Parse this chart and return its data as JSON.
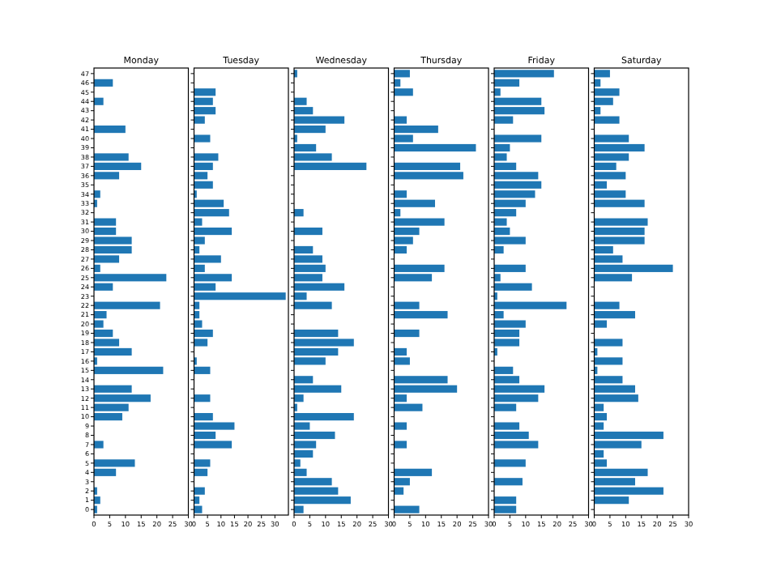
{
  "chart_data": [
    {
      "type": "bar",
      "orientation": "horizontal",
      "title": "Monday",
      "color": "#1f77b4",
      "xlim": [
        0,
        30
      ],
      "xticks": [
        0,
        5,
        10,
        15,
        20,
        25,
        30
      ],
      "categories": [
        "47",
        "46",
        "45",
        "44",
        "43",
        "42",
        "41",
        "40",
        "39",
        "38",
        "37",
        "36",
        "35",
        "34",
        "33",
        "32",
        "31",
        "30",
        "29",
        "28",
        "27",
        "26",
        "25",
        "24",
        "23",
        "22",
        "21",
        "20",
        "19",
        "18",
        "17",
        "16",
        "15",
        "14",
        "13",
        "12",
        "11",
        "10",
        "9",
        "8",
        "7",
        "6",
        "5",
        "4",
        "3",
        "2",
        "1",
        "0"
      ],
      "values": [
        0,
        6,
        0,
        3,
        0,
        0,
        10,
        0,
        0,
        11,
        15,
        8,
        0,
        2,
        1,
        0,
        7,
        7,
        12,
        12,
        8,
        2,
        23,
        6,
        0,
        21,
        4,
        3,
        6,
        8,
        12,
        1,
        22,
        0,
        12,
        18,
        11,
        9,
        0,
        0,
        3,
        0,
        13,
        7,
        0,
        1,
        2,
        1
      ]
    },
    {
      "type": "bar",
      "orientation": "horizontal",
      "title": "Tuesday",
      "color": "#1f77b4",
      "xlim": [
        0,
        35
      ],
      "xticks": [
        0,
        5,
        10,
        15,
        20,
        25,
        30
      ],
      "tick_labels": "x",
      "categories": [
        "47",
        "46",
        "45",
        "44",
        "43",
        "42",
        "41",
        "40",
        "39",
        "38",
        "37",
        "36",
        "35",
        "34",
        "33",
        "32",
        "31",
        "30",
        "29",
        "28",
        "27",
        "26",
        "25",
        "24",
        "23",
        "22",
        "21",
        "20",
        "19",
        "18",
        "17",
        "16",
        "15",
        "14",
        "13",
        "12",
        "11",
        "10",
        "9",
        "8",
        "7",
        "6",
        "5",
        "4",
        "3",
        "2",
        "1",
        "0"
      ],
      "values": [
        0,
        0,
        8,
        7,
        8,
        4,
        0,
        6,
        0,
        9,
        7,
        5,
        7,
        1,
        11,
        13,
        3,
        14,
        4,
        2,
        10,
        4,
        14,
        8,
        34,
        2,
        2,
        3,
        7,
        5,
        0,
        1,
        6,
        0,
        0,
        6,
        0,
        7,
        15,
        8,
        14,
        0,
        6,
        5,
        0,
        4,
        2,
        3
      ]
    },
    {
      "type": "bar",
      "orientation": "horizontal",
      "title": "Wednesday",
      "color": "#1f77b4",
      "xlim": [
        0,
        30
      ],
      "xticks": [
        0,
        5,
        10,
        15,
        20,
        25,
        30
      ],
      "tick_labels": "x",
      "categories": [
        "47",
        "46",
        "45",
        "44",
        "43",
        "42",
        "41",
        "40",
        "39",
        "38",
        "37",
        "36",
        "35",
        "34",
        "33",
        "32",
        "31",
        "30",
        "29",
        "28",
        "27",
        "26",
        "25",
        "24",
        "23",
        "22",
        "21",
        "20",
        "19",
        "18",
        "17",
        "16",
        "15",
        "14",
        "13",
        "12",
        "11",
        "10",
        "9",
        "8",
        "7",
        "6",
        "5",
        "4",
        "3",
        "2",
        "1",
        "0"
      ],
      "values": [
        1,
        0,
        0,
        4,
        6,
        16,
        10,
        1,
        7,
        12,
        23,
        0,
        0,
        0,
        0,
        3,
        0,
        9,
        0,
        6,
        9,
        10,
        9,
        16,
        4,
        12,
        0,
        0,
        14,
        19,
        14,
        10,
        0,
        6,
        15,
        3,
        1,
        19,
        5,
        13,
        7,
        6,
        2,
        4,
        12,
        14,
        18,
        3
      ]
    },
    {
      "type": "bar",
      "orientation": "horizontal",
      "title": "Thursday",
      "color": "#1f77b4",
      "xlim": [
        0,
        30
      ],
      "xticks": [
        0,
        5,
        10,
        15,
        20,
        25,
        30
      ],
      "tick_labels": "x",
      "categories": [
        "47",
        "46",
        "45",
        "44",
        "43",
        "42",
        "41",
        "40",
        "39",
        "38",
        "37",
        "36",
        "35",
        "34",
        "33",
        "32",
        "31",
        "30",
        "29",
        "28",
        "27",
        "26",
        "25",
        "24",
        "23",
        "22",
        "21",
        "20",
        "19",
        "18",
        "17",
        "16",
        "15",
        "14",
        "13",
        "12",
        "11",
        "10",
        "9",
        "8",
        "7",
        "6",
        "5",
        "4",
        "3",
        "2",
        "1",
        "0"
      ],
      "values": [
        5,
        2,
        6,
        0,
        0,
        4,
        14,
        6,
        26,
        0,
        21,
        22,
        0,
        4,
        13,
        2,
        16,
        8,
        6,
        4,
        0,
        16,
        12,
        0,
        0,
        8,
        17,
        0,
        8,
        0,
        4,
        5,
        0,
        17,
        20,
        4,
        9,
        0,
        4,
        0,
        4,
        0,
        0,
        12,
        5,
        3,
        0,
        8
      ]
    },
    {
      "type": "bar",
      "orientation": "horizontal",
      "title": "Friday",
      "color": "#1f77b4",
      "xlim": [
        0,
        30
      ],
      "xticks": [
        0,
        5,
        10,
        15,
        20,
        25,
        30
      ],
      "tick_labels": "x",
      "categories": [
        "47",
        "46",
        "45",
        "44",
        "43",
        "42",
        "41",
        "40",
        "39",
        "38",
        "37",
        "36",
        "35",
        "34",
        "33",
        "32",
        "31",
        "30",
        "29",
        "28",
        "27",
        "26",
        "25",
        "24",
        "23",
        "22",
        "21",
        "20",
        "19",
        "18",
        "17",
        "16",
        "15",
        "14",
        "13",
        "12",
        "11",
        "10",
        "9",
        "8",
        "7",
        "6",
        "5",
        "4",
        "3",
        "2",
        "1",
        "0"
      ],
      "values": [
        19,
        8,
        2,
        15,
        16,
        6,
        0,
        15,
        5,
        4,
        7,
        14,
        15,
        13,
        10,
        7,
        4,
        5,
        10,
        3,
        0,
        10,
        2,
        12,
        1,
        23,
        3,
        10,
        8,
        8,
        1,
        0,
        6,
        8,
        16,
        14,
        7,
        0,
        8,
        11,
        14,
        0,
        10,
        0,
        9,
        0,
        7,
        7
      ]
    },
    {
      "type": "bar",
      "orientation": "horizontal",
      "title": "Saturday",
      "color": "#1f77b4",
      "xlim": [
        0,
        30
      ],
      "xticks": [
        0,
        5,
        10,
        15,
        20,
        25,
        30
      ],
      "tick_labels": "x",
      "categories": [
        "47",
        "46",
        "45",
        "44",
        "43",
        "42",
        "41",
        "40",
        "39",
        "38",
        "37",
        "36",
        "35",
        "34",
        "33",
        "32",
        "31",
        "30",
        "29",
        "28",
        "27",
        "26",
        "25",
        "24",
        "23",
        "22",
        "21",
        "20",
        "19",
        "18",
        "17",
        "16",
        "15",
        "14",
        "13",
        "12",
        "11",
        "10",
        "9",
        "8",
        "7",
        "6",
        "5",
        "4",
        "3",
        "2",
        "1",
        "0"
      ],
      "values": [
        5,
        2,
        8,
        6,
        2,
        8,
        0,
        11,
        16,
        11,
        7,
        10,
        4,
        10,
        16,
        0,
        17,
        16,
        16,
        6,
        9,
        25,
        12,
        0,
        0,
        8,
        13,
        4,
        0,
        9,
        1,
        9,
        1,
        9,
        13,
        14,
        3,
        4,
        3,
        22,
        15,
        3,
        4,
        17,
        13,
        22,
        11,
        0
      ]
    }
  ]
}
